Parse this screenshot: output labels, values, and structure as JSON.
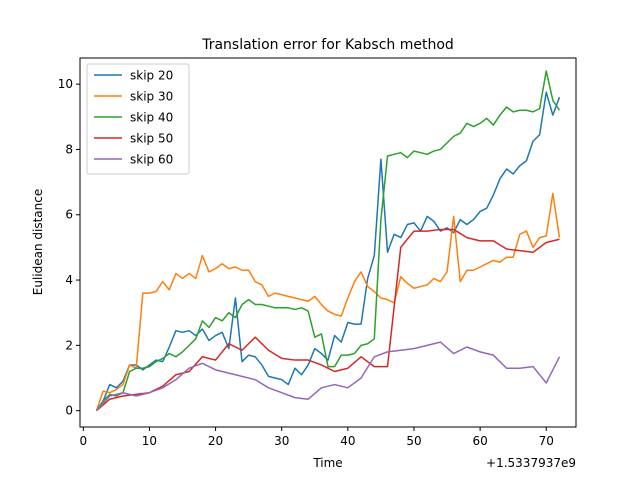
{
  "chart_data": {
    "type": "line",
    "title": "Translation error for Kabsch method",
    "xlabel": "Time",
    "ylabel": "Eulidean distance",
    "x_offset_label": "+1.5337937e9",
    "xlim": [
      -0.5,
      74.5
    ],
    "ylim": [
      -0.5,
      10.8
    ],
    "xticks": [
      0,
      10,
      20,
      30,
      40,
      50,
      60,
      70
    ],
    "yticks": [
      0,
      2,
      4,
      6,
      8,
      10
    ],
    "legend": "top-left",
    "grid": false,
    "series": [
      {
        "name": "skip 20",
        "color": "#1f77b4",
        "x": [
          2,
          3,
          4,
          5,
          6,
          7,
          8,
          9,
          10,
          11,
          12,
          13,
          14,
          15,
          16,
          17,
          18,
          19,
          20,
          21,
          22,
          23,
          24,
          25,
          26,
          27,
          28,
          29,
          30,
          31,
          32,
          33,
          34,
          35,
          36,
          37,
          38,
          39,
          40,
          41,
          42,
          43,
          44,
          45,
          46,
          47,
          48,
          49,
          50,
          51,
          52,
          53,
          54,
          55,
          56,
          57,
          58,
          59,
          60,
          61,
          62,
          63,
          64,
          65,
          66,
          67,
          68,
          69,
          70,
          71,
          72
        ],
        "values": [
          0.0,
          0.3,
          0.8,
          0.7,
          0.9,
          1.4,
          1.4,
          1.25,
          1.4,
          1.55,
          1.5,
          1.95,
          2.45,
          2.4,
          2.45,
          2.3,
          2.5,
          2.15,
          2.3,
          2.4,
          1.9,
          3.45,
          1.5,
          1.7,
          1.65,
          1.4,
          1.05,
          1.0,
          0.95,
          0.8,
          1.3,
          1.1,
          1.4,
          1.9,
          1.75,
          1.55,
          2.3,
          2.1,
          2.7,
          2.65,
          2.65,
          4.05,
          4.75,
          7.7,
          4.85,
          5.4,
          5.3,
          5.7,
          5.75,
          5.5,
          5.95,
          5.8,
          5.5,
          5.6,
          5.45,
          5.85,
          5.7,
          5.85,
          6.1,
          6.2,
          6.6,
          7.1,
          7.4,
          7.25,
          7.5,
          7.65,
          8.25,
          8.45,
          9.75,
          9.05,
          9.6
        ]
      },
      {
        "name": "skip 30",
        "color": "#ff7f0e",
        "x": [
          2,
          3,
          4,
          5,
          6,
          7,
          8,
          9,
          10,
          11,
          12,
          13,
          14,
          15,
          16,
          17,
          18,
          19,
          20,
          21,
          22,
          23,
          24,
          25,
          26,
          27,
          28,
          29,
          30,
          31,
          32,
          33,
          34,
          35,
          36,
          37,
          38,
          39,
          40,
          41,
          42,
          43,
          44,
          45,
          46,
          47,
          48,
          49,
          50,
          51,
          52,
          53,
          54,
          55,
          56,
          57,
          58,
          59,
          60,
          61,
          62,
          63,
          64,
          65,
          66,
          67,
          68,
          69,
          70,
          71,
          72
        ],
        "values": [
          0.0,
          0.6,
          0.55,
          0.65,
          0.8,
          1.4,
          1.3,
          3.6,
          3.6,
          3.65,
          3.95,
          3.7,
          4.2,
          4.05,
          4.2,
          4.05,
          4.75,
          4.25,
          4.35,
          4.5,
          4.35,
          4.4,
          4.3,
          4.3,
          3.95,
          3.85,
          3.5,
          3.6,
          3.55,
          3.5,
          3.45,
          3.4,
          3.35,
          3.5,
          3.25,
          3.05,
          2.95,
          2.9,
          3.45,
          3.95,
          4.25,
          3.8,
          3.65,
          3.45,
          3.4,
          3.3,
          4.1,
          3.9,
          3.75,
          3.8,
          3.85,
          4.05,
          3.95,
          4.25,
          5.95,
          3.95,
          4.3,
          4.3,
          4.4,
          4.5,
          4.6,
          4.55,
          4.7,
          4.7,
          5.4,
          5.5,
          5.0,
          5.3,
          5.35,
          6.65,
          5.3
        ]
      },
      {
        "name": "skip 40",
        "color": "#2ca02c",
        "x": [
          2,
          3,
          4,
          5,
          6,
          7,
          8,
          9,
          10,
          11,
          12,
          13,
          14,
          15,
          16,
          17,
          18,
          19,
          20,
          21,
          22,
          23,
          24,
          25,
          26,
          27,
          28,
          29,
          30,
          31,
          32,
          33,
          34,
          35,
          36,
          37,
          38,
          39,
          40,
          41,
          42,
          43,
          44,
          45,
          46,
          47,
          48,
          49,
          50,
          51,
          52,
          53,
          54,
          55,
          56,
          57,
          58,
          59,
          60,
          61,
          62,
          63,
          64,
          65,
          66,
          67,
          68,
          69,
          70,
          71,
          72
        ],
        "values": [
          0.0,
          0.3,
          0.5,
          0.45,
          0.55,
          1.2,
          1.3,
          1.3,
          1.35,
          1.5,
          1.6,
          1.75,
          1.65,
          1.8,
          2.0,
          2.2,
          2.75,
          2.55,
          2.85,
          2.75,
          3.0,
          2.85,
          3.25,
          3.4,
          3.25,
          3.25,
          3.2,
          3.15,
          3.15,
          3.15,
          3.1,
          3.15,
          3.05,
          2.25,
          2.35,
          1.35,
          1.35,
          1.7,
          1.7,
          1.75,
          2.0,
          2.05,
          2.2,
          5.85,
          7.8,
          7.85,
          7.9,
          7.75,
          7.95,
          7.9,
          7.85,
          7.95,
          8.0,
          8.2,
          8.4,
          8.5,
          8.8,
          8.7,
          8.8,
          8.95,
          8.75,
          9.05,
          9.3,
          9.15,
          9.2,
          9.2,
          9.15,
          9.25,
          10.4,
          9.5,
          9.2
        ]
      },
      {
        "name": "skip 50",
        "color": "#d62728",
        "x": [
          2,
          4,
          6,
          8,
          10,
          12,
          14,
          16,
          18,
          20,
          22,
          24,
          26,
          28,
          30,
          32,
          34,
          36,
          38,
          40,
          42,
          44,
          46,
          48,
          50,
          52,
          54,
          56,
          58,
          60,
          62,
          64,
          66,
          68,
          70,
          72
        ],
        "values": [
          0.0,
          0.35,
          0.45,
          0.5,
          0.55,
          0.75,
          1.1,
          1.2,
          1.65,
          1.55,
          2.05,
          1.85,
          2.25,
          1.85,
          1.6,
          1.55,
          1.55,
          1.4,
          1.2,
          1.3,
          1.65,
          1.35,
          1.35,
          5.0,
          5.5,
          5.5,
          5.55,
          5.55,
          5.3,
          5.2,
          5.2,
          4.95,
          4.9,
          4.85,
          5.15,
          5.25
        ]
      },
      {
        "name": "skip 60",
        "color": "#9467bd",
        "x": [
          2,
          4,
          6,
          8,
          10,
          12,
          14,
          16,
          18,
          20,
          22,
          24,
          26,
          28,
          30,
          32,
          34,
          36,
          38,
          40,
          42,
          44,
          46,
          48,
          50,
          52,
          54,
          56,
          58,
          60,
          62,
          64,
          66,
          68,
          70,
          72
        ],
        "values": [
          0.0,
          0.45,
          0.55,
          0.45,
          0.55,
          0.7,
          0.95,
          1.3,
          1.45,
          1.25,
          1.15,
          1.05,
          0.95,
          0.7,
          0.55,
          0.4,
          0.35,
          0.7,
          0.8,
          0.7,
          1.0,
          1.65,
          1.8,
          1.85,
          1.9,
          2.0,
          2.1,
          1.75,
          1.95,
          1.8,
          1.7,
          1.3,
          1.3,
          1.35,
          0.85,
          1.65
        ]
      }
    ]
  }
}
